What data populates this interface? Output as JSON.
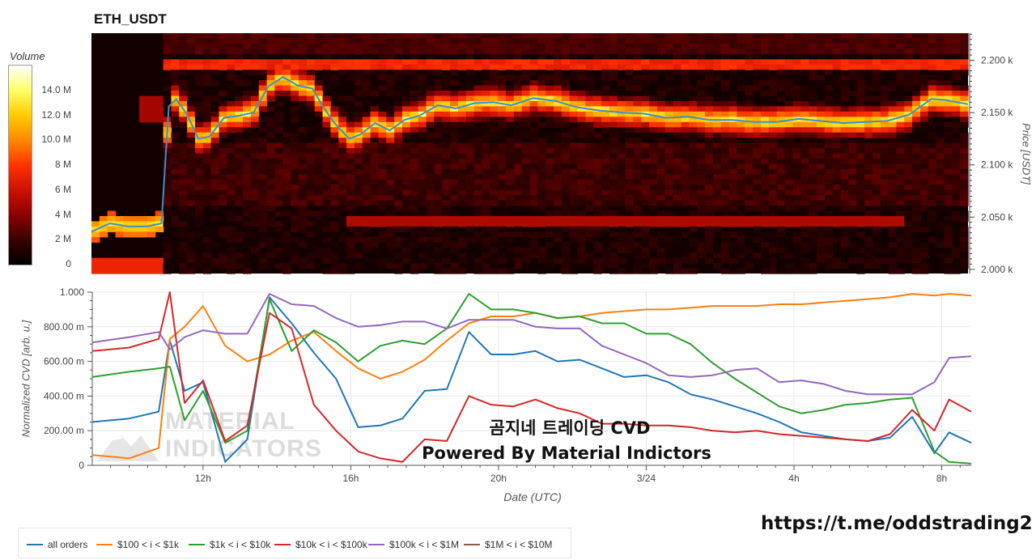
{
  "header": {
    "title": "ETH_USDT"
  },
  "colorbar": {
    "title": "Volume",
    "ticks": [
      "0",
      "2 M",
      "4 M",
      "6 M",
      "8 M",
      "10.0 M",
      "12.0 M",
      "14.0 M"
    ],
    "tick_values": [
      0,
      2,
      4,
      6,
      8,
      10,
      12,
      14
    ],
    "max": 16,
    "colors": [
      "#000000",
      "#3a0000",
      "#8b0000",
      "#cc1100",
      "#ff3300",
      "#ff8800",
      "#ffcc00",
      "#ffff66",
      "#ffffff"
    ]
  },
  "colors": {
    "all_orders": "#1f77b4",
    "s100_1k": "#ff7f0e",
    "s1k_10k": "#2ca02c",
    "s10k_100k": "#d62728",
    "s100k_1m": "#9467bd",
    "s1m_10m": "#8c564b",
    "price_line": "#3a8fd0",
    "grid": "#e8e8e8"
  },
  "overlay": {
    "line1": "곰지네 트레이딩 CVD",
    "line2": "Powered By Material Indictors",
    "url": "https://t.me/oddstrading2",
    "watermark": [
      "MATERIAL",
      "INDICATORS"
    ]
  },
  "chart_data": [
    {
      "type": "heatmap",
      "title": "ETH_USDT",
      "ylabel": "Price [USDT]",
      "ylim": [
        1996,
        2226
      ],
      "y_ticks": [
        2000,
        2050,
        2100,
        2150,
        2200
      ],
      "y_tick_labels": [
        "2.000 k",
        "2.050 k",
        "2.100 k",
        "2.150 k",
        "2.200 k"
      ],
      "x_range_hours": [
        9.0,
        32.8
      ],
      "price_series": {
        "name": "price",
        "x": [
          9.0,
          9.5,
          10.0,
          10.5,
          10.9,
          11.1,
          11.3,
          11.6,
          11.9,
          12.2,
          12.6,
          13.0,
          13.4,
          13.8,
          14.2,
          14.6,
          15.0,
          15.3,
          15.6,
          16.0,
          16.3,
          16.7,
          17.1,
          17.5,
          17.9,
          18.4,
          18.9,
          19.4,
          19.9,
          20.4,
          21.0,
          21.6,
          22.2,
          22.8,
          23.4,
          24.0,
          24.6,
          25.2,
          25.8,
          26.4,
          27.0,
          27.6,
          28.2,
          28.8,
          29.4,
          30.0,
          30.6,
          31.2,
          31.8,
          32.2,
          32.8
        ],
        "y": [
          2036,
          2044,
          2041,
          2041,
          2044,
          2156,
          2163,
          2148,
          2125,
          2127,
          2145,
          2147,
          2150,
          2175,
          2184,
          2176,
          2173,
          2155,
          2140,
          2125,
          2129,
          2140,
          2133,
          2143,
          2147,
          2157,
          2154,
          2159,
          2160,
          2157,
          2164,
          2161,
          2155,
          2152,
          2150,
          2149,
          2145,
          2146,
          2143,
          2143,
          2141,
          2141,
          2144,
          2142,
          2140,
          2141,
          2142,
          2148,
          2163,
          2162,
          2158
        ]
      }
    },
    {
      "type": "line",
      "xlabel": "Date (UTC)",
      "ylabel": "Normalized CVD [arb. u.]",
      "ylim": [
        0,
        1000
      ],
      "y_ticks": [
        0,
        200,
        400,
        600,
        800,
        1000
      ],
      "y_tick_labels": [
        "0",
        "200.00 m",
        "400.00 m",
        "600.00 m",
        "800.00 m",
        "1.000"
      ],
      "x_range_hours": [
        9.0,
        32.8
      ],
      "x_ticks": [
        12,
        16,
        20,
        24,
        28,
        32
      ],
      "x_tick_labels": [
        "12h",
        "16h",
        "20h",
        "3/24",
        "4h",
        "8h"
      ],
      "legend_position": "bottom-left",
      "x": [
        9.0,
        10.0,
        10.8,
        11.1,
        11.5,
        12.0,
        12.6,
        13.2,
        13.8,
        14.4,
        15.0,
        15.6,
        16.2,
        16.8,
        17.4,
        18.0,
        18.6,
        19.2,
        19.8,
        20.4,
        21.0,
        21.6,
        22.2,
        22.8,
        23.4,
        24.0,
        24.6,
        25.2,
        25.8,
        26.4,
        27.0,
        27.6,
        28.2,
        28.8,
        29.4,
        30.0,
        30.6,
        31.2,
        31.8,
        32.2,
        32.8
      ],
      "series": [
        {
          "name": "all orders",
          "values": [
            250,
            270,
            310,
            720,
            430,
            480,
            20,
            150,
            970,
            820,
            650,
            500,
            220,
            230,
            270,
            430,
            440,
            770,
            640,
            640,
            660,
            600,
            610,
            560,
            510,
            520,
            480,
            410,
            380,
            340,
            300,
            250,
            190,
            170,
            150,
            140,
            160,
            280,
            70,
            190,
            130
          ]
        },
        {
          "name": "$100 < i < $1k",
          "values": [
            60,
            40,
            100,
            730,
            800,
            920,
            690,
            600,
            640,
            720,
            770,
            660,
            560,
            500,
            540,
            610,
            720,
            820,
            860,
            860,
            880,
            850,
            860,
            880,
            890,
            900,
            900,
            910,
            920,
            920,
            920,
            930,
            930,
            940,
            950,
            960,
            970,
            990,
            980,
            990,
            980
          ]
        },
        {
          "name": "$1k < i < $10k",
          "values": [
            510,
            540,
            560,
            570,
            260,
            430,
            130,
            200,
            960,
            660,
            780,
            710,
            600,
            690,
            720,
            700,
            790,
            990,
            900,
            900,
            880,
            850,
            860,
            820,
            820,
            760,
            760,
            700,
            590,
            500,
            420,
            340,
            300,
            320,
            350,
            360,
            380,
            390,
            80,
            20,
            10
          ]
        },
        {
          "name": "$10k < i < $100k",
          "values": [
            660,
            680,
            730,
            1000,
            360,
            490,
            140,
            230,
            880,
            790,
            350,
            200,
            80,
            40,
            20,
            150,
            140,
            400,
            350,
            340,
            380,
            330,
            300,
            240,
            240,
            230,
            230,
            220,
            200,
            190,
            200,
            180,
            170,
            160,
            150,
            140,
            180,
            320,
            200,
            380,
            310
          ]
        },
        {
          "name": "$100k < i < $1M",
          "values": [
            710,
            740,
            770,
            670,
            740,
            780,
            760,
            760,
            990,
            930,
            920,
            850,
            800,
            810,
            830,
            830,
            790,
            840,
            840,
            840,
            800,
            790,
            790,
            690,
            640,
            590,
            520,
            510,
            520,
            550,
            560,
            480,
            490,
            470,
            430,
            410,
            410,
            410,
            480,
            620,
            630
          ]
        },
        {
          "name": "$1M < i < $10M",
          "values": [
            null,
            null,
            null,
            null,
            null,
            null,
            null,
            null,
            null,
            null,
            null,
            null,
            null,
            null,
            null,
            null,
            null,
            null,
            null,
            null,
            null,
            null,
            null,
            null,
            null,
            null,
            null,
            null,
            null,
            null,
            null,
            null,
            null,
            null,
            null,
            null,
            null,
            null,
            null,
            null,
            null
          ]
        }
      ]
    }
  ]
}
